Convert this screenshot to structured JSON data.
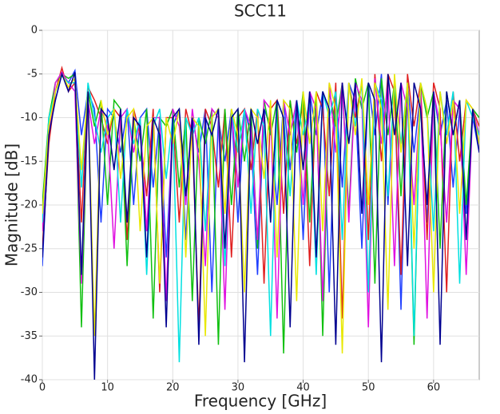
{
  "chart_data": {
    "type": "line",
    "title": "SCC11",
    "x_label": "Frequency [GHz]",
    "y_label": "Magnitude [dB]",
    "x": [
      0,
      1,
      2,
      3,
      4,
      5,
      6,
      7,
      8,
      9,
      10,
      11,
      12,
      13,
      14,
      15,
      16,
      17,
      18,
      19,
      20,
      21,
      22,
      23,
      24,
      25,
      26,
      27,
      28,
      29,
      30,
      31,
      32,
      33,
      34,
      35,
      36,
      37,
      38,
      39,
      40,
      41,
      42,
      43,
      44,
      45,
      46,
      47,
      48,
      49,
      50,
      51,
      52,
      53,
      54,
      55,
      56,
      57,
      58,
      59,
      60,
      61,
      62,
      63,
      64,
      65,
      66,
      67
    ],
    "xlim": [
      0,
      67
    ],
    "xticks": [
      0,
      10,
      20,
      30,
      40,
      50,
      60
    ],
    "ylim": [
      -40,
      0
    ],
    "yticks": [
      -40,
      -35,
      -30,
      -25,
      -20,
      -15,
      -10,
      -5,
      0
    ],
    "grid": true,
    "series": [
      {
        "color": "#1f3fff",
        "values": [
          -27,
          -11,
          -8,
          -5,
          -6,
          -4.6,
          -12,
          -7,
          -9,
          -22,
          -9,
          -10,
          -14,
          -9,
          -20,
          -10,
          -9,
          -18,
          -10,
          -26,
          -11,
          -9,
          -24,
          -10,
          -14,
          -9,
          -30,
          -10,
          -15,
          -9,
          -22,
          -9,
          -12,
          -28,
          -9,
          -11,
          -20,
          -8,
          -16,
          -8,
          -24,
          -7,
          -12,
          -7,
          -30,
          -7,
          -18,
          -6,
          -8,
          -25,
          -6,
          -12,
          -5,
          -20,
          -6,
          -32,
          -6,
          -14,
          -7,
          -22,
          -7,
          -12,
          -8,
          -18,
          -9,
          -21,
          -10,
          -14
        ]
      },
      {
        "color": "#e02020",
        "values": [
          -25,
          -13,
          -7,
          -4.3,
          -7,
          -6,
          -22,
          -6.5,
          -8,
          -10,
          -13,
          -9,
          -10,
          -24,
          -9,
          -12,
          -19,
          -9,
          -30,
          -10,
          -10,
          -22,
          -9,
          -12,
          -34,
          -9,
          -11,
          -18,
          -9,
          -26,
          -10,
          -9,
          -16,
          -9,
          -29,
          -9,
          -8,
          -21,
          -8,
          -13,
          -8,
          -27,
          -7,
          -9,
          -19,
          -6,
          -33,
          -6,
          -10,
          -6,
          -24,
          -5,
          -15,
          -5,
          -7,
          -28,
          -5,
          -11,
          -6,
          -24,
          -6,
          -9,
          -30,
          -7,
          -15,
          -8,
          -9,
          -11
        ]
      },
      {
        "color": "#10c010",
        "values": [
          -20,
          -10,
          -6,
          -5,
          -5.5,
          -5,
          -34,
          -7,
          -11,
          -8,
          -20,
          -8,
          -9,
          -27,
          -10,
          -15,
          -9,
          -33,
          -10,
          -11,
          -9,
          -18,
          -10,
          -31,
          -10,
          -13,
          -9,
          -36,
          -9,
          -20,
          -9,
          -15,
          -9,
          -25,
          -8,
          -12,
          -8,
          -37,
          -8,
          -14,
          -7,
          -22,
          -7,
          -35,
          -7,
          -11,
          -6,
          -21,
          -5.5,
          -9,
          -6,
          -29,
          -5.5,
          -12,
          -6,
          -19,
          -6,
          -36,
          -6,
          -10,
          -7,
          -25,
          -7,
          -12,
          -8,
          -20,
          -9,
          -10
        ]
      },
      {
        "color": "#e010e0",
        "values": [
          -23,
          -12,
          -6,
          -4.8,
          -6,
          -7,
          -29,
          -8,
          -13,
          -9,
          -11,
          -25,
          -10,
          -9,
          -14,
          -10,
          -23,
          -10,
          -10,
          -31,
          -9,
          -11,
          -20,
          -9,
          -15,
          -27,
          -9,
          -10,
          -32,
          -9,
          -18,
          -9,
          -11,
          -24,
          -8,
          -9,
          -33,
          -8,
          -12,
          -8,
          -20,
          -7,
          -9,
          -31,
          -6,
          -14,
          -6,
          -22,
          -6,
          -8,
          -34,
          -5.5,
          -13,
          -6,
          -27,
          -6,
          -9,
          -20,
          -7,
          -33,
          -7,
          -11,
          -22,
          -8,
          -9,
          -28,
          -9,
          -12
        ]
      },
      {
        "color": "#00e0e0",
        "values": [
          -22,
          -10,
          -7,
          -5.2,
          -6,
          -6,
          -18,
          -6,
          -10,
          -14,
          -10,
          -9,
          -22,
          -9,
          -13,
          -10,
          -28,
          -11,
          -9,
          -17,
          -10,
          -38,
          -10,
          -12,
          -10,
          -23,
          -10,
          -9,
          -27,
          -9,
          -14,
          -9,
          -21,
          -9,
          -11,
          -35,
          -8,
          -10,
          -19,
          -8,
          -12,
          -8,
          -28,
          -7,
          -10,
          -7,
          -24,
          -6,
          -11,
          -6,
          -30,
          -6,
          -8,
          -19,
          -6,
          -13,
          -6,
          -35,
          -6,
          -9,
          -23,
          -7,
          -12,
          -7,
          -29,
          -8,
          -10,
          -12
        ]
      },
      {
        "color": "#e8e800",
        "values": [
          -21,
          -11,
          -7,
          -5,
          -6.5,
          -5.5,
          -16,
          -7,
          -35,
          -8,
          -12,
          -9,
          -17,
          -10,
          -9,
          -23,
          -11,
          -10,
          -29,
          -10,
          -13,
          -9,
          -26,
          -10,
          -11,
          -35,
          -10,
          -9,
          -21,
          -9,
          -12,
          -30,
          -9,
          -10,
          -17,
          -8,
          -26,
          -8,
          -9,
          -31,
          -7,
          -13,
          -7,
          -23,
          -6,
          -9,
          -37,
          -6,
          -12,
          -5.5,
          -20,
          -6,
          -9,
          -32,
          -5,
          -14,
          -6,
          -25,
          -6,
          -9,
          -30,
          -7,
          -13,
          -8,
          -21,
          -8,
          -9,
          -13
        ]
      },
      {
        "color": "#000090",
        "values": [
          -26,
          -12,
          -8,
          -5,
          -7,
          -4.8,
          -28,
          -7,
          -40,
          -9,
          -10,
          -16,
          -9,
          -22,
          -10,
          -11,
          -26,
          -10,
          -12,
          -34,
          -10,
          -9,
          -19,
          -10,
          -36,
          -10,
          -12,
          -9,
          -25,
          -10,
          -9,
          -38,
          -9,
          -13,
          -9,
          -22,
          -8,
          -10,
          -34,
          -8,
          -16,
          -7,
          -26,
          -7,
          -9,
          -36,
          -6,
          -13,
          -6,
          -21,
          -6,
          -8,
          -38,
          -5,
          -12,
          -6,
          -27,
          -6,
          -9,
          -20,
          -7,
          -36,
          -7,
          -12,
          -8,
          -24,
          -9,
          -14
        ]
      }
    ]
  }
}
